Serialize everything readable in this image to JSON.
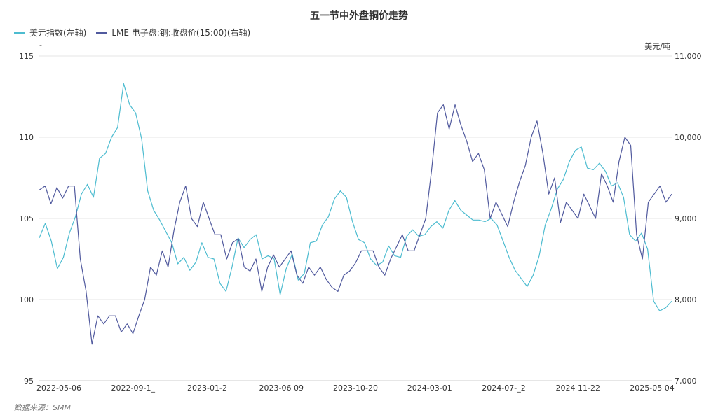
{
  "title": "五一节中外盘铜价走势",
  "unit_left": "-",
  "unit_right": "美元/吨",
  "source": "数据来源：SMM",
  "colors": {
    "usd": "#4dbcd0",
    "lme": "#515a9e",
    "grid": "#e6e6e6"
  },
  "chart_data": {
    "type": "line",
    "title": "五一节中外盘铜价走势",
    "x_ticks": [
      "2022-05-06",
      "2022-09-1_",
      "2023-01-2",
      "2023-06 09",
      "2023-10-20",
      "2024-03-01",
      "2024-07-_2",
      "2024 11-22",
      "2025-05 04"
    ],
    "y_left": {
      "ticks": [
        "95",
        "100",
        "105",
        "110",
        "115"
      ],
      "ylim": [
        95,
        115
      ]
    },
    "y_right": {
      "ticks": [
        "7,000",
        "8,000",
        "9,000",
        "10,000",
        "11,000"
      ],
      "ylim": [
        7000,
        11000
      ]
    },
    "grid": true,
    "legend_position": "top-left",
    "series": [
      {
        "name": "美元指数(左轴)",
        "axis": "left",
        "values": [
          103.8,
          104.7,
          103.6,
          101.9,
          102.6,
          104.1,
          105.1,
          106.5,
          107.1,
          106.3,
          108.7,
          109.0,
          110.0,
          110.6,
          113.3,
          112.0,
          111.5,
          109.9,
          106.7,
          105.5,
          104.9,
          104.2,
          103.5,
          102.2,
          102.6,
          101.8,
          102.3,
          103.5,
          102.6,
          102.5,
          101.0,
          100.5,
          102.0,
          103.8,
          103.2,
          103.7,
          104.0,
          102.5,
          102.7,
          102.5,
          100.3,
          101.9,
          102.8,
          101.2,
          101.6,
          103.5,
          103.6,
          104.6,
          105.1,
          106.2,
          106.7,
          106.3,
          104.8,
          103.7,
          103.5,
          102.5,
          102.1,
          102.3,
          103.3,
          102.7,
          102.6,
          103.9,
          104.3,
          103.9,
          104.0,
          104.5,
          104.8,
          104.4,
          105.5,
          106.1,
          105.5,
          105.2,
          104.9,
          104.9,
          104.8,
          105.0,
          104.6,
          103.6,
          102.6,
          101.8,
          101.3,
          100.8,
          101.5,
          102.7,
          104.6,
          105.6,
          106.8,
          107.4,
          108.5,
          109.2,
          109.4,
          108.1,
          108.0,
          108.4,
          107.9,
          107.0,
          107.2,
          106.3,
          104.0,
          103.6,
          104.1,
          103.1,
          99.9,
          99.3,
          99.5,
          99.9
        ]
      },
      {
        "name": "LME 电子盘:铜:收盘价(15:00)(右轴)",
        "axis": "right",
        "values": [
          9350,
          9400,
          9180,
          9380,
          9250,
          9400,
          9400,
          8500,
          8100,
          7450,
          7800,
          7700,
          7800,
          7800,
          7600,
          7700,
          7580,
          7800,
          8000,
          8400,
          8300,
          8600,
          8400,
          8850,
          9200,
          9400,
          9000,
          8900,
          9200,
          9000,
          8800,
          8800,
          8500,
          8700,
          8750,
          8400,
          8350,
          8500,
          8100,
          8400,
          8550,
          8400,
          8500,
          8600,
          8300,
          8200,
          8400,
          8300,
          8400,
          8250,
          8150,
          8100,
          8300,
          8350,
          8450,
          8600,
          8600,
          8600,
          8400,
          8300,
          8500,
          8650,
          8800,
          8600,
          8600,
          8800,
          9000,
          9600,
          10300,
          10400,
          10100,
          10400,
          10150,
          9950,
          9700,
          9800,
          9600,
          9000,
          9200,
          9050,
          8900,
          9200,
          9450,
          9650,
          10000,
          10200,
          9800,
          9300,
          9500,
          8950,
          9200,
          9100,
          9000,
          9300,
          9150,
          9000,
          9550,
          9400,
          9200,
          9700,
          10000,
          9900,
          8800,
          8500,
          9200,
          9300,
          9400,
          9200,
          9300
        ]
      }
    ]
  }
}
